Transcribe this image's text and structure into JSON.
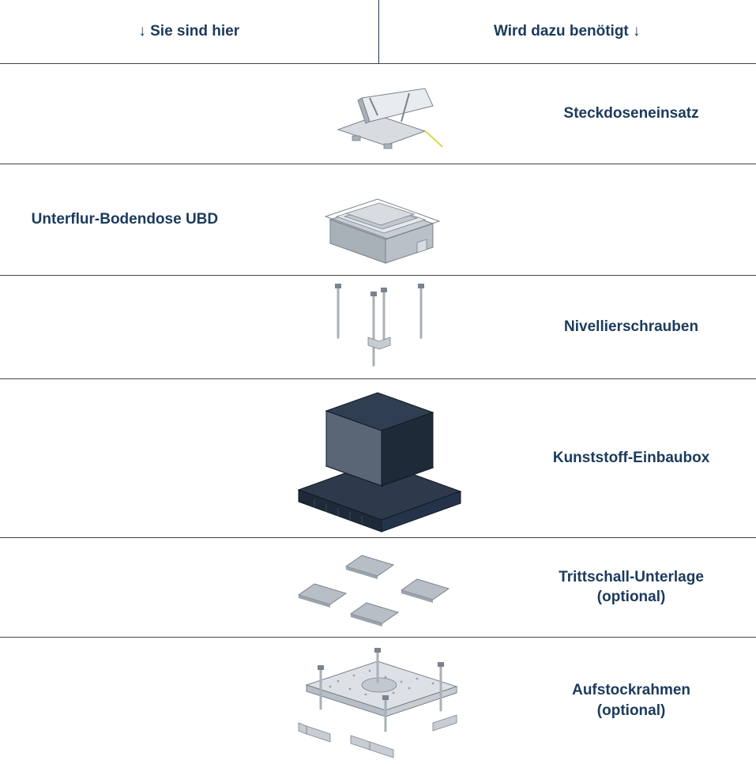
{
  "diagram": {
    "type": "infographic",
    "header": {
      "left_label": "↓ Sie sind hier",
      "right_label": "Wird dazu benötigt ↓",
      "text_color": "#1a3a5c",
      "font_size_pt": 15,
      "font_weight": "bold",
      "divider_color": "#1a3a5c"
    },
    "rows": [
      {
        "id": "steckdoseneinsatz",
        "left_label": "",
        "right_label": "Steckdoseneinsatz",
        "icon": "socket-insert"
      },
      {
        "id": "bodendose",
        "left_label": "Unterflur-Bodendose UBD",
        "right_label": "",
        "icon": "floor-box"
      },
      {
        "id": "nivellierschrauben",
        "left_label": "",
        "right_label": "Nivellierschrauben",
        "icon": "leveling-screws"
      },
      {
        "id": "einbaubox",
        "left_label": "",
        "right_label": "Kunststoff-Einbaubox",
        "icon": "install-box"
      },
      {
        "id": "trittschall",
        "left_label": "",
        "right_label": "Trittschall-Unterlage\n(optional)",
        "icon": "impact-pads"
      },
      {
        "id": "aufstockrahmen",
        "left_label": "",
        "right_label": "Aufstockrahmen\n(optional)",
        "icon": "riser-frame"
      }
    ],
    "border_color": "#444444",
    "text_color": "#1a3a5c",
    "label_font_size_pt": 15,
    "background_color": "#ffffff",
    "icon_colors": {
      "metal_light": "#d8dce0",
      "metal_mid": "#a8b0b8",
      "metal_dark": "#7a828c",
      "box_dark": "#1e2a38",
      "box_dark2": "#2c3a4c",
      "shadow": "#6a7484",
      "yellow": "#d8d848"
    }
  }
}
